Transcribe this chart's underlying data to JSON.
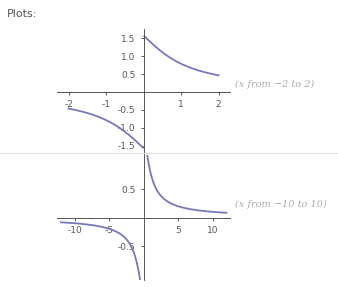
{
  "title": "Plots:",
  "plot1": {
    "xlim": [
      -2.3,
      2.3
    ],
    "ylim": [
      -1.75,
      1.75
    ],
    "xticks": [
      -2,
      -1,
      1,
      2
    ],
    "yticks": [
      -1.5,
      -1.0,
      -0.5,
      0.5,
      1.0,
      1.5
    ],
    "label": "(x from −2 to 2)"
  },
  "plot2": {
    "xlim": [
      -12.5,
      12.5
    ],
    "ylim": [
      -1.1,
      1.1
    ],
    "xticks": [
      -10,
      -5,
      5,
      10
    ],
    "yticks": [
      -0.5,
      0.5
    ],
    "label": "(x from −10 to 10)"
  },
  "line_color": "#7777bb",
  "line_width": 1.3,
  "background_color": "#ffffff",
  "font_color": "#aaaaaa",
  "axes_color": "#555555",
  "spine_color": "#555555",
  "tick_color": "#555555",
  "separator_color": "#dddddd"
}
